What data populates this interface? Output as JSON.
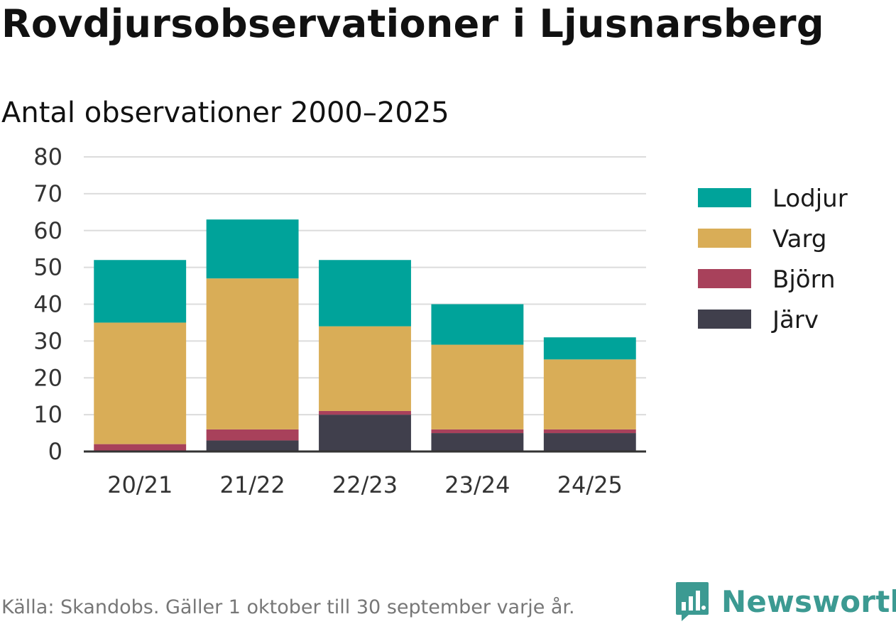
{
  "chart_data": {
    "type": "bar",
    "stacked": true,
    "title": "Rovdjursobservationer i Ljusnarsberg",
    "subtitle": "Antal observationer 2000–2025",
    "categories": [
      "20/21",
      "21/22",
      "22/23",
      "23/24",
      "24/25"
    ],
    "series": [
      {
        "name": "Järv",
        "color": "#403f4c",
        "values": [
          0,
          3,
          10,
          5,
          5
        ]
      },
      {
        "name": "Björn",
        "color": "#a8415b",
        "values": [
          2,
          3,
          1,
          1,
          1
        ]
      },
      {
        "name": "Varg",
        "color": "#d9ad57",
        "values": [
          33,
          41,
          23,
          23,
          19
        ]
      },
      {
        "name": "Lodjur",
        "color": "#00a39a",
        "values": [
          17,
          16,
          18,
          11,
          6
        ]
      }
    ],
    "legend_order": [
      "Lodjur",
      "Varg",
      "Björn",
      "Järv"
    ],
    "legend_position": "right",
    "ylim": [
      0,
      80
    ],
    "yticks": [
      0,
      10,
      20,
      30,
      40,
      50,
      60,
      70,
      80
    ],
    "xlabel": "",
    "ylabel": "",
    "grid": true
  },
  "footer": {
    "source": "Källa: Skandobs. Gäller 1 oktober till 30 september varje år."
  },
  "brand": {
    "name": "Newsworthy",
    "icon": "newsworthy-logo-icon",
    "color": "#3c9a92"
  }
}
